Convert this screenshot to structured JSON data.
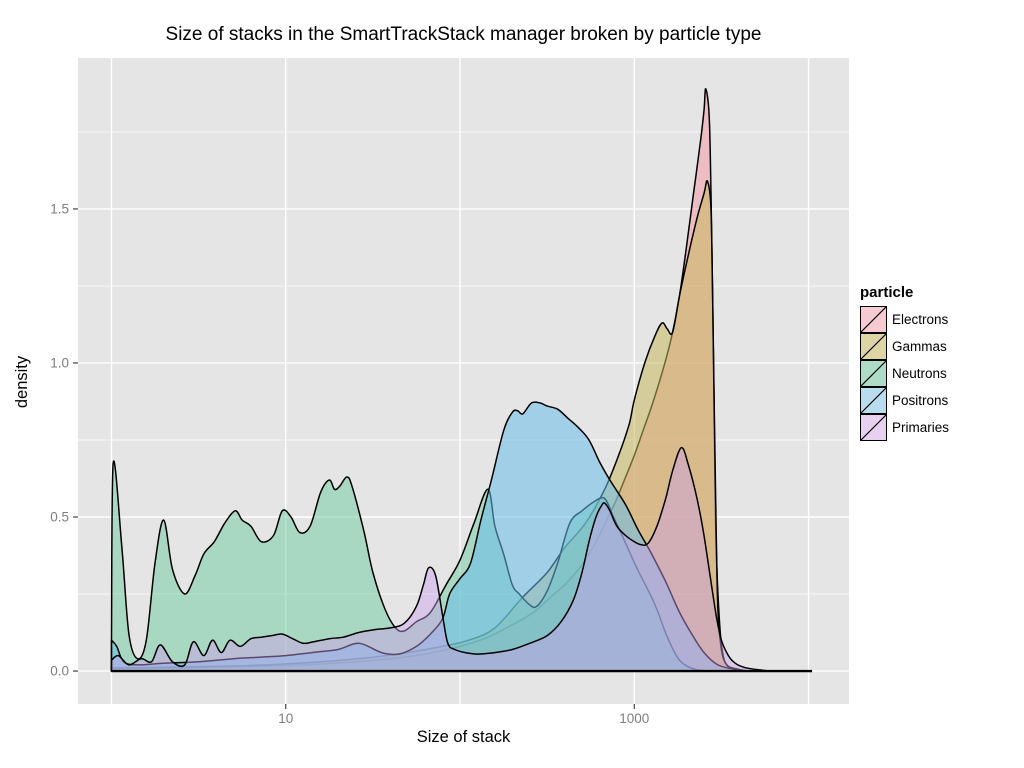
{
  "title": "Size of stacks in the SmartTrackStack manager broken by particle type",
  "panel": {
    "background": "#e5e5e5",
    "grid_major_color": "#ffffff",
    "grid_minor_color": "#ffffff",
    "tick_color": "#333333",
    "tick_label_color": "#7e7e7e",
    "curve_outline_color": "#000000"
  },
  "legend": {
    "title": "particle",
    "items": [
      {
        "label": "Electrons",
        "swatch": "#f5cbd1"
      },
      {
        "label": "Gammas",
        "swatch": "#ddd5a4"
      },
      {
        "label": "Neutrons",
        "swatch": "#aedcc6"
      },
      {
        "label": "Positrons",
        "swatch": "#b9dcee"
      },
      {
        "label": "Primaries",
        "swatch": "#e8d1f0"
      }
    ]
  },
  "chart_data": {
    "type": "area",
    "title": "Size of stacks in the SmartTrackStack manager broken by particle type",
    "xlabel": "Size of stack",
    "ylabel": "density",
    "x_scale": "log10",
    "x_range_log10": [
      -0.192,
      4.232
    ],
    "y_range": [
      -0.107,
      1.99
    ],
    "x_ticks": [
      {
        "value": 10,
        "label": "10"
      },
      {
        "value": 1000,
        "label": "1000"
      }
    ],
    "x_gridline_decades": [
      0,
      1,
      2,
      3,
      4
    ],
    "y_ticks": [
      {
        "value": 0.0,
        "label": "0.0"
      },
      {
        "value": 0.5,
        "label": "0.5"
      },
      {
        "value": 1.0,
        "label": "1.0"
      },
      {
        "value": 1.5,
        "label": "1.5"
      }
    ],
    "y_minor": [
      0.25,
      0.75,
      1.25,
      1.75
    ],
    "legend_position": "right",
    "grid": true,
    "series": [
      {
        "name": "Electrons",
        "fill": "rgba(243,150,160,0.50)",
        "points": [
          [
            0,
            0.008
          ],
          [
            0.4,
            0.01
          ],
          [
            0.8,
            0.015
          ],
          [
            1.1,
            0.02
          ],
          [
            1.4,
            0.03
          ],
          [
            1.6,
            0.04
          ],
          [
            1.8,
            0.055
          ],
          [
            2.0,
            0.08
          ],
          [
            2.16,
            0.11
          ],
          [
            2.3,
            0.15
          ],
          [
            2.42,
            0.19
          ],
          [
            2.52,
            0.24
          ],
          [
            2.6,
            0.28
          ],
          [
            2.68,
            0.33
          ],
          [
            2.74,
            0.38
          ],
          [
            2.8,
            0.44
          ],
          [
            2.85,
            0.5
          ],
          [
            2.9,
            0.56
          ],
          [
            2.95,
            0.63
          ],
          [
            3.0,
            0.7
          ],
          [
            3.05,
            0.78
          ],
          [
            3.1,
            0.86
          ],
          [
            3.15,
            0.95
          ],
          [
            3.19,
            1.03
          ],
          [
            3.22,
            1.1
          ],
          [
            3.26,
            1.22
          ],
          [
            3.3,
            1.38
          ],
          [
            3.34,
            1.55
          ],
          [
            3.38,
            1.72
          ],
          [
            3.4,
            1.82
          ],
          [
            3.41,
            1.89
          ],
          [
            3.43,
            1.8
          ],
          [
            3.44,
            1.55
          ],
          [
            3.45,
            1.2
          ],
          [
            3.46,
            0.75
          ],
          [
            3.47,
            0.4
          ],
          [
            3.49,
            0.15
          ],
          [
            3.51,
            0.05
          ],
          [
            3.54,
            0.015
          ],
          [
            3.6,
            0.004
          ],
          [
            3.62,
            0
          ]
        ]
      },
      {
        "name": "Gammas",
        "fill": "rgba(200,184,95,0.55)",
        "points": [
          [
            0,
            0.01
          ],
          [
            0.3,
            0.012
          ],
          [
            0.6,
            0.015
          ],
          [
            0.9,
            0.02
          ],
          [
            1.2,
            0.03
          ],
          [
            1.5,
            0.045
          ],
          [
            1.7,
            0.06
          ],
          [
            1.9,
            0.08
          ],
          [
            2.05,
            0.1
          ],
          [
            2.2,
            0.14
          ],
          [
            2.36,
            0.24
          ],
          [
            2.5,
            0.32
          ],
          [
            2.6,
            0.4
          ],
          [
            2.72,
            0.48
          ],
          [
            2.83,
            0.59
          ],
          [
            2.91,
            0.7
          ],
          [
            2.97,
            0.8
          ],
          [
            3.0,
            0.88
          ],
          [
            3.06,
            1.0
          ],
          [
            3.12,
            1.09
          ],
          [
            3.16,
            1.13
          ],
          [
            3.19,
            1.11
          ],
          [
            3.22,
            1.1
          ],
          [
            3.26,
            1.22
          ],
          [
            3.31,
            1.35
          ],
          [
            3.36,
            1.47
          ],
          [
            3.4,
            1.55
          ],
          [
            3.42,
            1.59
          ],
          [
            3.44,
            1.5
          ],
          [
            3.45,
            1.2
          ],
          [
            3.46,
            0.8
          ],
          [
            3.47,
            0.45
          ],
          [
            3.48,
            0.2
          ],
          [
            3.5,
            0.07
          ],
          [
            3.53,
            0.02
          ],
          [
            3.58,
            0.008
          ],
          [
            3.65,
            0
          ]
        ]
      },
      {
        "name": "Neutrons",
        "fill": "rgba(120,205,165,0.55)",
        "points": [
          [
            0,
            0.1
          ],
          [
            0.01,
            0.675
          ],
          [
            0.06,
            0.4
          ],
          [
            0.1,
            0.12
          ],
          [
            0.15,
            0.04
          ],
          [
            0.2,
            0.1
          ],
          [
            0.25,
            0.35
          ],
          [
            0.3,
            0.49
          ],
          [
            0.35,
            0.33
          ],
          [
            0.42,
            0.25
          ],
          [
            0.48,
            0.31
          ],
          [
            0.53,
            0.38
          ],
          [
            0.59,
            0.42
          ],
          [
            0.65,
            0.48
          ],
          [
            0.71,
            0.52
          ],
          [
            0.75,
            0.49
          ],
          [
            0.8,
            0.47
          ],
          [
            0.86,
            0.42
          ],
          [
            0.93,
            0.44
          ],
          [
            0.98,
            0.52
          ],
          [
            1.03,
            0.5
          ],
          [
            1.08,
            0.45
          ],
          [
            1.14,
            0.47
          ],
          [
            1.2,
            0.58
          ],
          [
            1.25,
            0.62
          ],
          [
            1.28,
            0.59
          ],
          [
            1.31,
            0.6
          ],
          [
            1.35,
            0.63
          ],
          [
            1.38,
            0.6
          ],
          [
            1.45,
            0.45
          ],
          [
            1.5,
            0.32
          ],
          [
            1.57,
            0.2
          ],
          [
            1.63,
            0.14
          ],
          [
            1.68,
            0.13
          ],
          [
            1.75,
            0.16
          ],
          [
            1.83,
            0.19
          ],
          [
            1.92,
            0.28
          ],
          [
            2.0,
            0.36
          ],
          [
            2.08,
            0.48
          ],
          [
            2.16,
            0.59
          ],
          [
            2.2,
            0.47
          ],
          [
            2.25,
            0.38
          ],
          [
            2.3,
            0.28
          ],
          [
            2.34,
            0.25
          ],
          [
            2.4,
            0.215
          ],
          [
            2.44,
            0.21
          ],
          [
            2.5,
            0.26
          ],
          [
            2.56,
            0.35
          ],
          [
            2.63,
            0.48
          ],
          [
            2.7,
            0.52
          ],
          [
            2.77,
            0.55
          ],
          [
            2.83,
            0.56
          ],
          [
            2.88,
            0.5
          ],
          [
            2.93,
            0.44
          ],
          [
            3.01,
            0.34
          ],
          [
            3.09,
            0.25
          ],
          [
            3.13,
            0.2
          ],
          [
            3.19,
            0.11
          ],
          [
            3.26,
            0.035
          ],
          [
            3.35,
            0.005
          ],
          [
            3.45,
            0
          ]
        ]
      },
      {
        "name": "Positrons",
        "fill": "rgba(105,190,235,0.55)",
        "points": [
          [
            0,
            0.1
          ],
          [
            0.03,
            0.08
          ],
          [
            0.07,
            0.03
          ],
          [
            0.15,
            0.02
          ],
          [
            0.3,
            0.025
          ],
          [
            0.5,
            0.03
          ],
          [
            0.7,
            0.04
          ],
          [
            0.85,
            0.045
          ],
          [
            1.0,
            0.05
          ],
          [
            1.15,
            0.06
          ],
          [
            1.3,
            0.07
          ],
          [
            1.42,
            0.09
          ],
          [
            1.55,
            0.06
          ],
          [
            1.65,
            0.055
          ],
          [
            1.75,
            0.08
          ],
          [
            1.83,
            0.12
          ],
          [
            1.9,
            0.17
          ],
          [
            1.94,
            0.25
          ],
          [
            2.0,
            0.3
          ],
          [
            2.06,
            0.35
          ],
          [
            2.12,
            0.49
          ],
          [
            2.18,
            0.62
          ],
          [
            2.25,
            0.78
          ],
          [
            2.3,
            0.84
          ],
          [
            2.33,
            0.845
          ],
          [
            2.36,
            0.835
          ],
          [
            2.41,
            0.87
          ],
          [
            2.46,
            0.87
          ],
          [
            2.5,
            0.86
          ],
          [
            2.56,
            0.85
          ],
          [
            2.62,
            0.82
          ],
          [
            2.68,
            0.79
          ],
          [
            2.74,
            0.75
          ],
          [
            2.8,
            0.68
          ],
          [
            2.86,
            0.62
          ],
          [
            2.95,
            0.54
          ],
          [
            3.02,
            0.46
          ],
          [
            3.09,
            0.39
          ],
          [
            3.18,
            0.29
          ],
          [
            3.26,
            0.19
          ],
          [
            3.33,
            0.12
          ],
          [
            3.4,
            0.06
          ],
          [
            3.48,
            0.02
          ],
          [
            3.58,
            0.005
          ],
          [
            3.65,
            0
          ]
        ]
      },
      {
        "name": "Primaries",
        "fill": "rgba(205,160,235,0.45)",
        "points": [
          [
            0,
            0.035
          ],
          [
            0.04,
            0.05
          ],
          [
            0.1,
            0.02
          ],
          [
            0.17,
            0.04
          ],
          [
            0.23,
            0.03
          ],
          [
            0.28,
            0.085
          ],
          [
            0.35,
            0.03
          ],
          [
            0.42,
            0.02
          ],
          [
            0.47,
            0.095
          ],
          [
            0.53,
            0.05
          ],
          [
            0.58,
            0.1
          ],
          [
            0.63,
            0.06
          ],
          [
            0.68,
            0.1
          ],
          [
            0.74,
            0.08
          ],
          [
            0.8,
            0.105
          ],
          [
            0.86,
            0.11
          ],
          [
            0.92,
            0.115
          ],
          [
            0.98,
            0.12
          ],
          [
            1.04,
            0.105
          ],
          [
            1.1,
            0.09
          ],
          [
            1.16,
            0.095
          ],
          [
            1.25,
            0.105
          ],
          [
            1.33,
            0.11
          ],
          [
            1.42,
            0.125
          ],
          [
            1.52,
            0.135
          ],
          [
            1.6,
            0.14
          ],
          [
            1.68,
            0.155
          ],
          [
            1.75,
            0.21
          ],
          [
            1.79,
            0.28
          ],
          [
            1.82,
            0.335
          ],
          [
            1.86,
            0.31
          ],
          [
            1.9,
            0.18
          ],
          [
            1.93,
            0.09
          ],
          [
            1.97,
            0.07
          ],
          [
            2.03,
            0.06
          ],
          [
            2.1,
            0.055
          ],
          [
            2.2,
            0.06
          ],
          [
            2.3,
            0.07
          ],
          [
            2.4,
            0.09
          ],
          [
            2.5,
            0.115
          ],
          [
            2.58,
            0.16
          ],
          [
            2.65,
            0.23
          ],
          [
            2.7,
            0.32
          ],
          [
            2.74,
            0.42
          ],
          [
            2.78,
            0.5
          ],
          [
            2.81,
            0.535
          ],
          [
            2.83,
            0.545
          ],
          [
            2.86,
            0.52
          ],
          [
            2.9,
            0.47
          ],
          [
            2.95,
            0.44
          ],
          [
            3.0,
            0.42
          ],
          [
            3.04,
            0.41
          ],
          [
            3.08,
            0.415
          ],
          [
            3.13,
            0.47
          ],
          [
            3.18,
            0.56
          ],
          [
            3.22,
            0.65
          ],
          [
            3.27,
            0.725
          ],
          [
            3.31,
            0.67
          ],
          [
            3.36,
            0.56
          ],
          [
            3.4,
            0.44
          ],
          [
            3.44,
            0.29
          ],
          [
            3.47,
            0.18
          ],
          [
            3.5,
            0.1
          ],
          [
            3.54,
            0.05
          ],
          [
            3.58,
            0.025
          ],
          [
            3.63,
            0.012
          ],
          [
            3.7,
            0.005
          ],
          [
            3.78,
            0
          ]
        ]
      }
    ]
  }
}
